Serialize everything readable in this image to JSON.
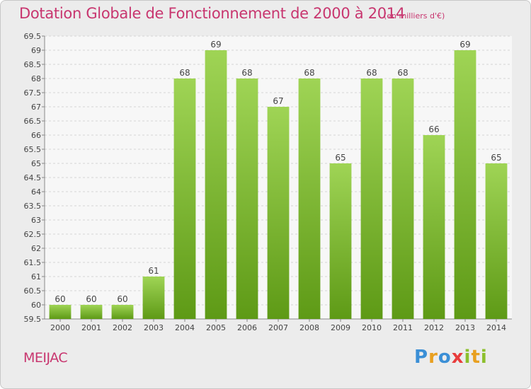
{
  "header": {
    "title": "Dotation Globale de Fonctionnement de 2000 à 2014",
    "subtitle": "(en milliers d'€)"
  },
  "footer": {
    "commune": "MEIJAC",
    "logo_letters": [
      "P",
      "r",
      "o",
      "x",
      "i",
      "t",
      "i"
    ]
  },
  "colors": {
    "title": "#c8366f",
    "bar_top": "#9fd455",
    "bar_bottom": "#5e9a16",
    "background": "#ececec",
    "plot_background": "#f7f7f7"
  },
  "chart_data": {
    "type": "bar",
    "title": "Dotation Globale de Fonctionnement de 2000 à 2014",
    "subtitle": "(en milliers d'€)",
    "categories": [
      "2000",
      "2001",
      "2002",
      "2003",
      "2004",
      "2005",
      "2006",
      "2007",
      "2008",
      "2009",
      "2010",
      "2011",
      "2012",
      "2013",
      "2014"
    ],
    "values": [
      60,
      60,
      60,
      61,
      68,
      69,
      68,
      67,
      68,
      65,
      68,
      68,
      66,
      69,
      65
    ],
    "data_labels": [
      "60",
      "60",
      "60",
      "61",
      "68",
      "69",
      "68",
      "67",
      "68",
      "65",
      "68",
      "68",
      "66",
      "69",
      "65"
    ],
    "ylim": [
      59.5,
      69.5
    ],
    "yticks": [
      59.5,
      60,
      60.5,
      61,
      61.5,
      62,
      62.5,
      63,
      63.5,
      64,
      64.5,
      65,
      65.5,
      66,
      66.5,
      67,
      67.5,
      68,
      68.5,
      69,
      69.5
    ],
    "ytick_labels": [
      "59.5",
      "60",
      "60.5",
      "61",
      "61.5",
      "62",
      "62.5",
      "63",
      "63.5",
      "64",
      "64.5",
      "65",
      "65.5",
      "66",
      "66.5",
      "67",
      "67.5",
      "68",
      "68.5",
      "69",
      "69.5"
    ],
    "grid": true,
    "xlabel": "",
    "ylabel": ""
  }
}
